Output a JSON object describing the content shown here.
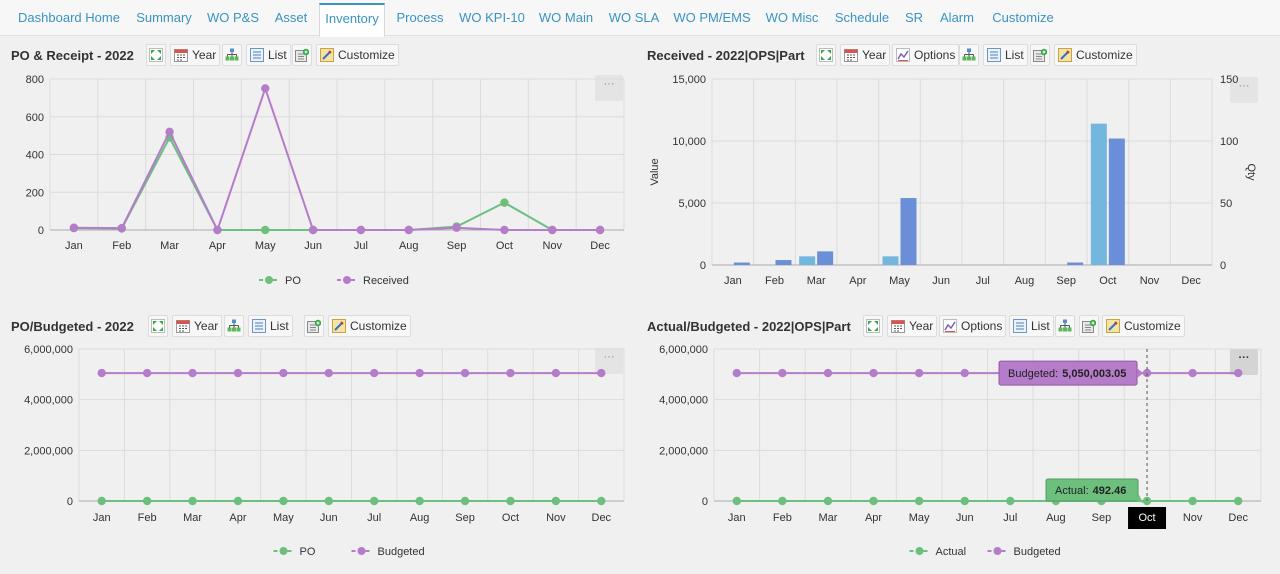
{
  "tabs": [
    {
      "label": "Dashboard Home",
      "active": false
    },
    {
      "label": "Summary",
      "active": false
    },
    {
      "label": "WO P&S",
      "active": false
    },
    {
      "label": "Asset",
      "active": false
    },
    {
      "label": "Inventory",
      "active": true
    },
    {
      "label": "Process",
      "active": false
    },
    {
      "label": "WO KPI-10",
      "active": false
    },
    {
      "label": "WO Main",
      "active": false
    },
    {
      "label": "WO SLA",
      "active": false
    },
    {
      "label": "WO PM/EMS",
      "active": false
    },
    {
      "label": "WO Misc",
      "active": false
    },
    {
      "label": "Schedule",
      "active": false
    },
    {
      "label": "SR",
      "active": false
    },
    {
      "label": "Alarm",
      "active": false
    },
    {
      "label": "Customize",
      "active": false
    }
  ],
  "colors": {
    "po": "#6dbf7e",
    "received": "#b57cc9",
    "bar_light": "#74b7de",
    "bar_dark": "#6a8fd8",
    "tab_text": "#3a93c4",
    "grid": "#dcdcdc"
  },
  "toolbar_labels": {
    "year": "Year",
    "list": "List",
    "customize": "Customize",
    "options": "Options"
  },
  "panels": {
    "p1": {
      "title": "PO & Receipt - 2022",
      "more": "···"
    },
    "p2": {
      "title": "Received - 2022|OPS|Part",
      "more": "···"
    },
    "p3": {
      "title": "PO/Budgeted - 2022",
      "more": "···"
    },
    "p4": {
      "title": "Actual/Budgeted - 2022|OPS|Part",
      "more": "···"
    }
  },
  "tooltips": {
    "budgeted_label": "Budgeted:",
    "budgeted_value": "5,050,003.05",
    "actual_label": "Actual:",
    "actual_value": "492.46",
    "highlight_month": "Oct"
  },
  "chart_data": [
    {
      "type": "line",
      "title": "PO & Receipt - 2022",
      "categories": [
        "Jan",
        "Feb",
        "Mar",
        "Apr",
        "May",
        "Jun",
        "Jul",
        "Aug",
        "Sep",
        "Oct",
        "Nov",
        "Dec"
      ],
      "yticks": [
        "0",
        "200",
        "400",
        "600",
        "800"
      ],
      "ylim": [
        0,
        800
      ],
      "series": [
        {
          "name": "PO",
          "color": "#6dbf7e",
          "values": [
            10,
            8,
            490,
            0,
            0,
            0,
            0,
            0,
            18,
            145,
            0,
            0
          ]
        },
        {
          "name": "Received",
          "color": "#b57cc9",
          "values": [
            12,
            10,
            520,
            0,
            750,
            0,
            0,
            0,
            12,
            0,
            0,
            0
          ]
        }
      ],
      "grid": true,
      "legend": "bottom"
    },
    {
      "type": "bar",
      "title": "Received - 2022|OPS|Part",
      "categories": [
        "Jan",
        "Feb",
        "Mar",
        "Apr",
        "May",
        "Jun",
        "Jul",
        "Aug",
        "Sep",
        "Oct",
        "Nov",
        "Dec"
      ],
      "ylabel": "Value",
      "y2label": "Qty",
      "yticks": [
        "0",
        "5,000",
        "10,000",
        "15,000"
      ],
      "y2ticks": [
        "0",
        "50",
        "100",
        "150"
      ],
      "ylim": [
        0,
        15000
      ],
      "y2lim": [
        0,
        150
      ],
      "series": [
        {
          "name": "Value",
          "color": "#74b7de",
          "axis": "left",
          "values": [
            0,
            0,
            700,
            0,
            700,
            0,
            0,
            0,
            0,
            11400,
            0,
            0
          ]
        },
        {
          "name": "Qty",
          "color": "#6a8fd8",
          "axis": "right",
          "values": [
            2,
            4,
            11,
            0,
            54,
            0,
            0,
            0,
            2,
            102,
            0,
            0
          ]
        }
      ],
      "grid": true
    },
    {
      "type": "line",
      "title": "PO/Budgeted - 2022",
      "categories": [
        "Jan",
        "Feb",
        "Mar",
        "Apr",
        "May",
        "Jun",
        "Jul",
        "Aug",
        "Sep",
        "Oct",
        "Nov",
        "Dec"
      ],
      "yticks": [
        "0",
        "2,000,000",
        "4,000,000",
        "6,000,000"
      ],
      "ylim": [
        0,
        6000000
      ],
      "series": [
        {
          "name": "PO",
          "color": "#6dbf7e",
          "values": [
            0,
            0,
            0,
            0,
            0,
            0,
            0,
            0,
            0,
            0,
            0,
            0
          ]
        },
        {
          "name": "Budgeted",
          "color": "#b57cc9",
          "values": [
            5050003,
            5050003,
            5050003,
            5050003,
            5050003,
            5050003,
            5050003,
            5050003,
            5050003,
            5050003,
            5050003,
            5050003
          ]
        }
      ],
      "grid": true,
      "legend": "bottom"
    },
    {
      "type": "line",
      "title": "Actual/Budgeted - 2022|OPS|Part",
      "categories": [
        "Jan",
        "Feb",
        "Mar",
        "Apr",
        "May",
        "Jun",
        "Jul",
        "Aug",
        "Sep",
        "Oct",
        "Nov",
        "Dec"
      ],
      "yticks": [
        "0",
        "2,000,000",
        "4,000,000",
        "6,000,000"
      ],
      "ylim": [
        0,
        6000000
      ],
      "series": [
        {
          "name": "Actual",
          "color": "#6dbf7e",
          "values": [
            0,
            0,
            0,
            0,
            0,
            0,
            0,
            0,
            0,
            492.46,
            0,
            0
          ]
        },
        {
          "name": "Budgeted",
          "color": "#b57cc9",
          "values": [
            5050003.05,
            5050003.05,
            5050003.05,
            5050003.05,
            5050003.05,
            5050003.05,
            5050003.05,
            5050003.05,
            5050003.05,
            5050003.05,
            5050003.05,
            5050003.05
          ]
        }
      ],
      "grid": true,
      "legend": "bottom"
    }
  ]
}
